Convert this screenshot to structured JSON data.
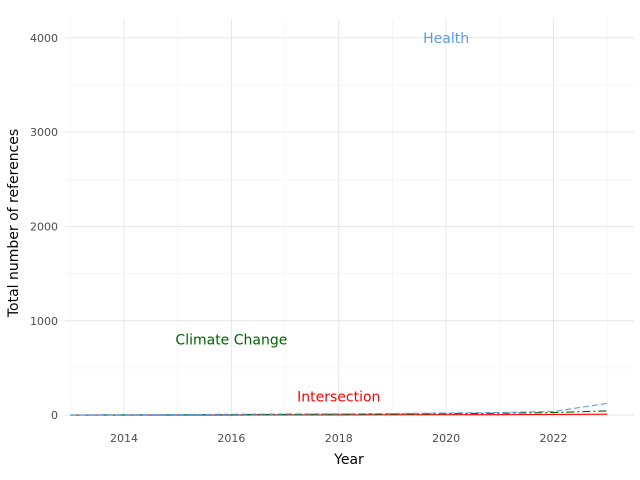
{
  "chart_data": {
    "type": "line",
    "title": "",
    "xlabel": "Year",
    "ylabel": "Total number of references",
    "xlim": [
      2012.9,
      2023.5
    ],
    "ylim": [
      -20,
      4200
    ],
    "x_ticks": [
      2014,
      2016,
      2018,
      2020,
      2022
    ],
    "y_ticks": [
      0,
      1000,
      2000,
      3000,
      4000
    ],
    "grid": true,
    "legend": "none",
    "x": [
      2013,
      2014,
      2015,
      2016,
      2017,
      2018,
      2019,
      2020,
      2021,
      2022,
      2023
    ],
    "series": [
      {
        "key": "health",
        "color": "#5B9BE6",
        "dash": "6,3",
        "values": [
          2,
          4,
          6,
          9,
          12,
          14,
          17,
          22,
          28,
          38,
          125
        ]
      },
      {
        "key": "climate",
        "color": "#006400",
        "dash": "8,3,2,3",
        "values": [
          1,
          2,
          3,
          5,
          7,
          9,
          11,
          15,
          20,
          27,
          45
        ]
      },
      {
        "key": "intersection",
        "color": "#FF0000",
        "dash": "",
        "values": [
          0,
          0,
          1,
          1,
          2,
          2,
          3,
          4,
          5,
          7,
          10
        ]
      }
    ],
    "annotations": [
      {
        "key": "health",
        "text": "Health",
        "x": 2020,
        "y": 4000,
        "color": "#5B9BE6"
      },
      {
        "key": "climate",
        "text": "Climate Change",
        "x": 2016,
        "y": 800,
        "color": "#006400"
      },
      {
        "key": "intersection",
        "text": "Intersection",
        "x": 2018,
        "y": 200,
        "color": "#FF0000"
      }
    ]
  }
}
